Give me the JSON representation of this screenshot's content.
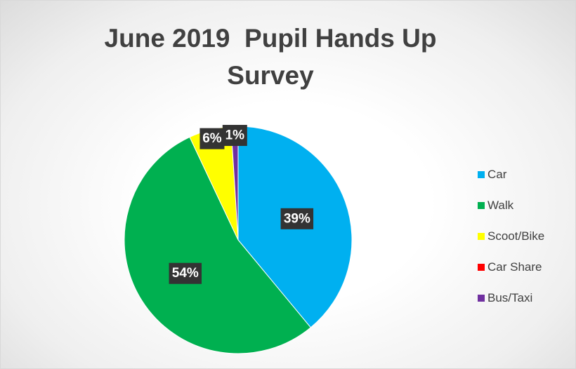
{
  "chart_data": {
    "type": "pie",
    "title": "June 2019  Pupil Hands Up Survey",
    "categories": [
      "Car",
      "Walk",
      "Scoot/Bike",
      "Car Share",
      "Bus/Taxi"
    ],
    "values": [
      39,
      54,
      6,
      0,
      1
    ],
    "data_labels": [
      "39%",
      "54%",
      "6%",
      "",
      "1%"
    ],
    "colors": [
      "#00B0F0",
      "#00B050",
      "#FFFF00",
      "#FF0000",
      "#7030A0"
    ],
    "start_angle_deg": 0,
    "direction": "clockwise",
    "legend_position": "right",
    "label_style": "white bold text on dark box"
  }
}
